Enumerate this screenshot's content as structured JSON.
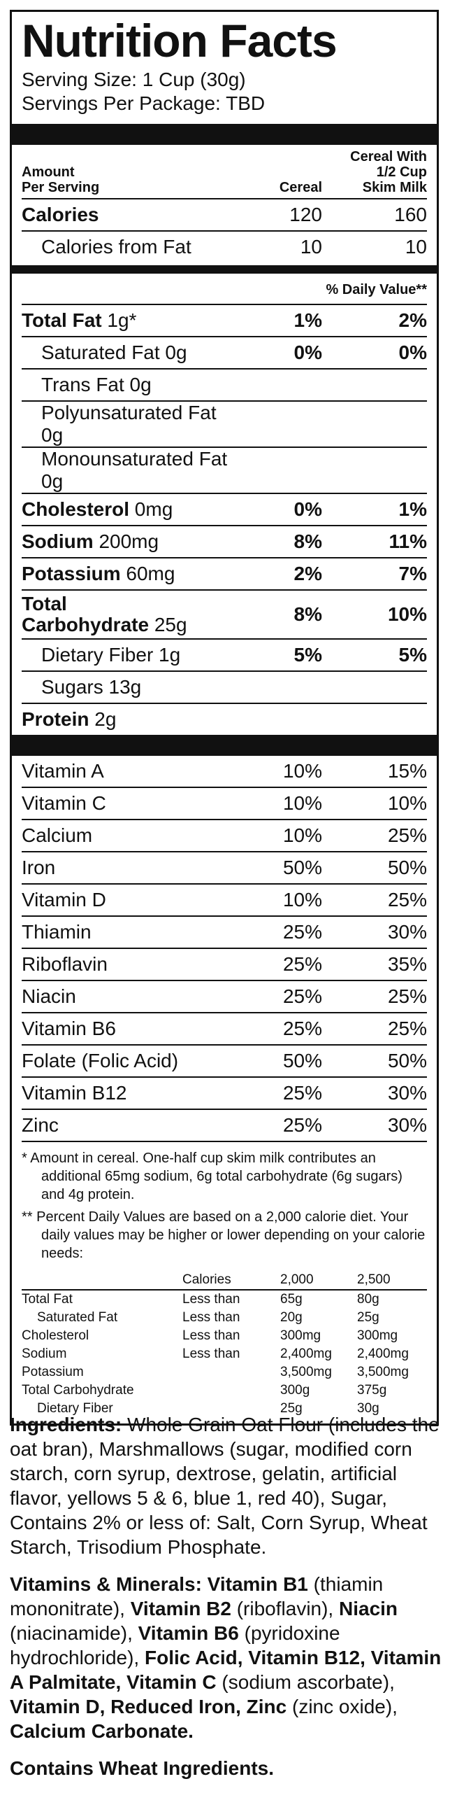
{
  "title": "Nutrition Facts",
  "serving_size": "Serving Size: 1 Cup (30g)",
  "servings_per_package": "Servings Per Package: TBD",
  "header": {
    "amount": "Amount",
    "per_serving": "Per Serving",
    "col1": "Cereal",
    "col2a": "Cereal With",
    "col2b": "1/2 Cup",
    "col2c": "Skim Milk"
  },
  "calories": {
    "label": "Calories",
    "v1": "120",
    "v2": "160"
  },
  "calories_fat": {
    "label": "Calories from Fat",
    "v1": "10",
    "v2": "10"
  },
  "dv_header": "% Daily Value**",
  "nutrients": [
    {
      "name": "Total Fat",
      "amount": " 1g*",
      "v1": "1%",
      "v2": "2%"
    },
    {
      "name": "Saturated Fat 0g",
      "v1": "0%",
      "v2": "0%"
    },
    {
      "name": "Trans Fat 0g"
    },
    {
      "name": "Polyunsaturated Fat 0g"
    },
    {
      "name": "Monounsaturated Fat 0g"
    },
    {
      "name": "Cholesterol",
      "amount": " 0mg",
      "v1": "0%",
      "v2": "1%"
    },
    {
      "name": "Sodium",
      "amount": " 200mg",
      "v1": "8%",
      "v2": "11%"
    },
    {
      "name": "Potassium",
      "amount": " 60mg",
      "v1": "2%",
      "v2": "7%"
    },
    {
      "name": "Total",
      "name2": "Carbohydrate",
      "amount": " 25g",
      "v1": "8%",
      "v2": "10%"
    },
    {
      "name": "Dietary Fiber 1g",
      "v1": "5%",
      "v2": "5%"
    },
    {
      "name": "Sugars 13g"
    },
    {
      "name": "Protein",
      "amount": " 2g"
    }
  ],
  "vitamins": [
    {
      "name": "Vitamin A",
      "v1": "10%",
      "v2": "15%"
    },
    {
      "name": "Vitamin C",
      "v1": "10%",
      "v2": "10%"
    },
    {
      "name": "Calcium",
      "v1": "10%",
      "v2": "25%"
    },
    {
      "name": "Iron",
      "v1": "50%",
      "v2": "50%"
    },
    {
      "name": "Vitamin D",
      "v1": "10%",
      "v2": "25%"
    },
    {
      "name": "Thiamin",
      "v1": "25%",
      "v2": "30%"
    },
    {
      "name": "Riboflavin",
      "v1": "25%",
      "v2": "35%"
    },
    {
      "name": "Niacin",
      "v1": "25%",
      "v2": "25%"
    },
    {
      "name": "Vitamin B6",
      "v1": "25%",
      "v2": "25%"
    },
    {
      "name": "Folate (Folic Acid)",
      "v1": "50%",
      "v2": "50%"
    },
    {
      "name": "Vitamin B12",
      "v1": "25%",
      "v2": "30%"
    },
    {
      "name": "Zinc",
      "v1": "25%",
      "v2": "30%"
    }
  ],
  "footnote1": "*  Amount in cereal. One-half cup skim milk contributes an additional 65mg sodium, 6g total carbohydrate (6g sugars) and 4g protein.",
  "footnote2": "** Percent Daily Values are based on a 2,000 calorie diet. Your daily values may be higher or lower depending on your calorie needs:",
  "dv_table": {
    "head": [
      "",
      "Calories",
      "2,000",
      "2,500"
    ],
    "rows": [
      [
        "Total Fat",
        "Less than",
        "65g",
        "80g"
      ],
      [
        "Saturated Fat",
        "Less than",
        "20g",
        "25g"
      ],
      [
        "Cholesterol",
        "Less than",
        "300mg",
        "300mg"
      ],
      [
        "Sodium",
        "Less than",
        "2,400mg",
        "2,400mg"
      ],
      [
        "Potassium",
        "",
        "3,500mg",
        "3,500mg"
      ],
      [
        "Total Carbohydrate",
        "",
        "300g",
        "375g"
      ],
      [
        "Dietary Fiber",
        "",
        "25g",
        "30g"
      ]
    ]
  },
  "ingredients": {
    "label": "Ingredients:",
    "text": " Whole Grain Oat Flour (includes the oat bran), Marshmallows (sugar, modified corn starch, corn syrup, dextrose, gelatin, artificial flavor, yellows 5 & 6, blue 1, red 40), Sugar, Contains 2% or less of: Salt, Corn Syrup, Wheat Starch, Trisodium Phosphate."
  },
  "vitamins_minerals": [
    {
      "b": "Vitamins & Minerals: Vitamin B1",
      "t": " (thiamin mononitrate), "
    },
    {
      "b": "Vitamin B2",
      "t": " (riboflavin), "
    },
    {
      "b": "Niacin",
      "t": " (niacinamide), "
    },
    {
      "b": "Vitamin B6",
      "t": " (pyridoxine hydrochloride), "
    },
    {
      "b": "Folic Acid, Vitamin B12, Vitamin A Palmitate, Vitamin C",
      "t": " (sodium ascorbate), "
    },
    {
      "b": "Vitamin D, Reduced Iron, Zinc",
      "t": " (zinc oxide), "
    },
    {
      "b": "Calcium Carbonate.",
      "t": ""
    }
  ],
  "allergen": "Contains Wheat Ingredients."
}
